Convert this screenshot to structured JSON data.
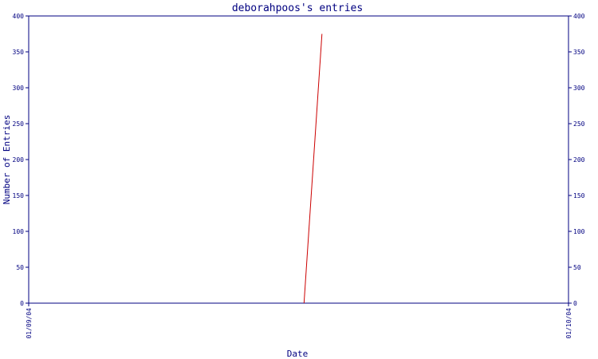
{
  "chart_data": {
    "type": "line",
    "title": "deborahpoos's entries",
    "xlabel": "Date",
    "ylabel": "Number of Entries",
    "x_tick_labels": [
      "01/09/04",
      "01/10/04"
    ],
    "y_ticks": [
      0,
      50,
      100,
      150,
      200,
      250,
      300,
      350,
      400
    ],
    "ylim": [
      0,
      400
    ],
    "xlim": [
      0,
      30
    ],
    "grid": false,
    "colors": {
      "axis": "#000080",
      "series": "#cc0000"
    },
    "series": [
      {
        "x": [
          15.3,
          16.3
        ],
        "values": [
          0,
          375
        ]
      }
    ]
  }
}
